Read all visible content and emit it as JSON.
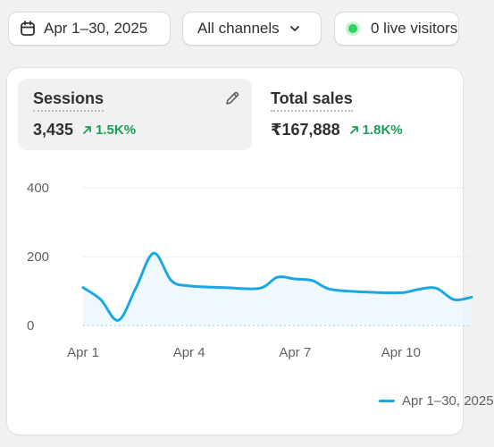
{
  "filters": {
    "date_range": "Apr 1–30, 2025",
    "channels": "All channels",
    "live_visitors": "0 live visitors"
  },
  "metrics": [
    {
      "title": "Sessions",
      "value": "3,435",
      "change": "1.5K%"
    },
    {
      "title": "Total sales",
      "value": "₹167,888",
      "change": "1.8K%"
    }
  ],
  "chart_data": {
    "type": "area",
    "y_ticks": [
      "400",
      "200",
      "0"
    ],
    "ylim": [
      0,
      400
    ],
    "x_ticks": [
      "Apr 1",
      "Apr 4",
      "Apr 7",
      "Apr 10"
    ],
    "grid": true,
    "legend_position": "bottom-right",
    "series": [
      {
        "name": "Apr 1–30, 2025",
        "color": "#1aa7e6",
        "x": [
          1,
          1.5,
          2,
          2.5,
          3,
          3.5,
          4,
          5,
          6,
          6.5,
          7,
          7.5,
          8,
          9,
          10,
          10.5,
          11,
          11.5,
          12
        ],
        "y": [
          110,
          75,
          15,
          110,
          210,
          130,
          115,
          110,
          108,
          140,
          135,
          130,
          105,
          97,
          95,
          105,
          108,
          75,
          82
        ]
      }
    ]
  },
  "colors": {
    "accent": "#1aa7e6",
    "positive": "#1e9e55",
    "live": "#2fd15f"
  }
}
